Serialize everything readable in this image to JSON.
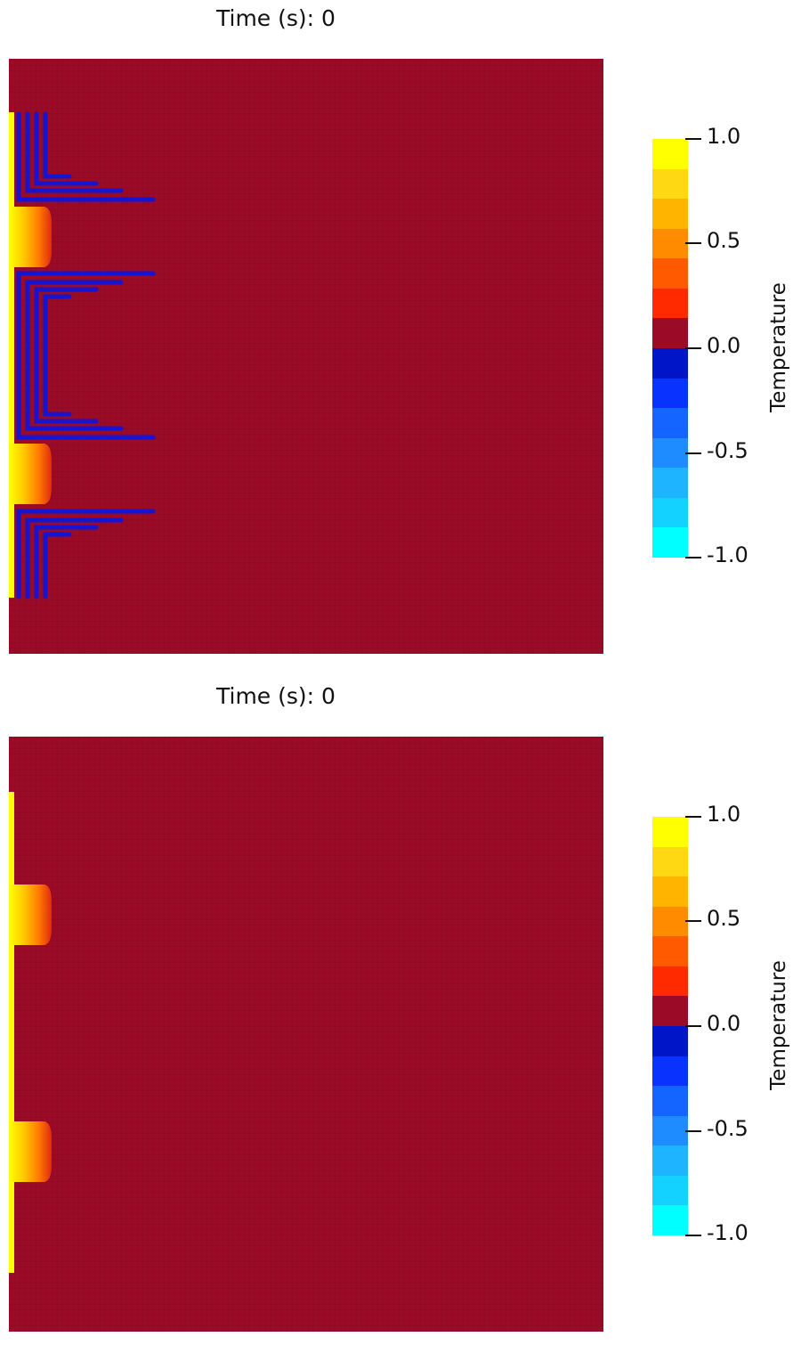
{
  "panels": [
    {
      "time_label": "Time (s): 0",
      "colorbar": {
        "title": "Temperature",
        "tick_labels": [
          "1.0",
          "0.5",
          "0.0",
          "-0.5",
          "-1.0"
        ],
        "range": [
          -1.0,
          1.0
        ],
        "colors": [
          "#ffff00",
          "#ffd814",
          "#ffb400",
          "#ff8c00",
          "#ff5a00",
          "#ff2a00",
          "#9b0a26",
          "#0014c8",
          "#0a32ff",
          "#1464ff",
          "#1e8cff",
          "#1eb4ff",
          "#14d2ff",
          "#00ffff"
        ]
      }
    },
    {
      "time_label": "Time (s): 0",
      "colorbar": {
        "title": "Temperature",
        "tick_labels": [
          "1.0",
          "0.5",
          "0.0",
          "-0.5",
          "-1.0"
        ],
        "range": [
          -1.0,
          1.0
        ],
        "colors": [
          "#ffff00",
          "#ffd814",
          "#ffb400",
          "#ff8c00",
          "#ff5a00",
          "#ff2a00",
          "#9b0a26",
          "#0014c8",
          "#0a32ff",
          "#1464ff",
          "#1e8cff",
          "#1eb4ff",
          "#14d2ff",
          "#00ffff"
        ]
      }
    }
  ],
  "colors": {
    "background_field": "#9b0a26",
    "hot_edge": "#ffff00",
    "cold_contour": "#1414d2"
  }
}
